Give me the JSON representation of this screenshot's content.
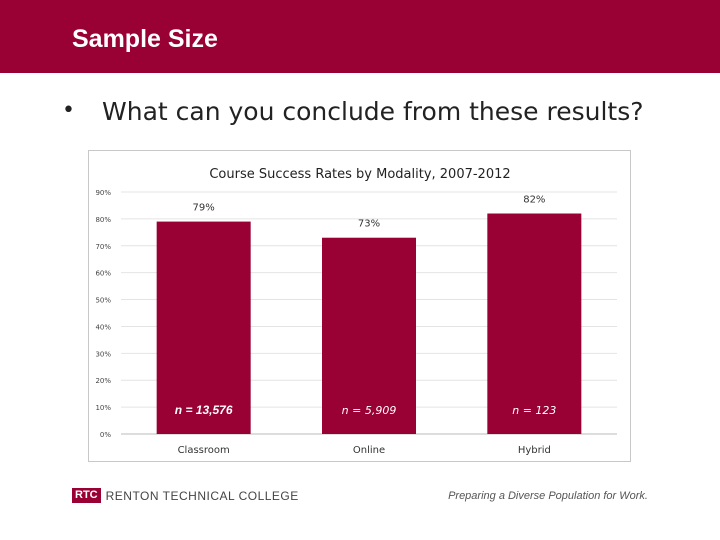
{
  "slide": {
    "title": "Sample Size",
    "bullet_symbol": "•",
    "question": "What can you conclude from these results?"
  },
  "chart_data": {
    "type": "bar",
    "title": "Course Success Rates by Modality, 2007-2012",
    "categories": [
      "Classroom",
      "Online",
      "Hybrid"
    ],
    "values": [
      79,
      73,
      82
    ],
    "value_labels": [
      "79%",
      "73%",
      "82%"
    ],
    "sample_labels": [
      "n = 13,576",
      "n = 5,909",
      "n = 123"
    ],
    "ylim": [
      0,
      90
    ],
    "yticks": [
      0,
      10,
      20,
      30,
      40,
      50,
      60,
      70,
      80,
      90
    ],
    "ytick_labels": [
      "0%",
      "10%",
      "20%",
      "30%",
      "40%",
      "50%",
      "60%",
      "70%",
      "80%",
      "90%"
    ],
    "xlabel": "",
    "ylabel": "",
    "bar_color": "#990033",
    "grid": true
  },
  "footer": {
    "logo_abbrev": "RTC",
    "college_name": "RENTON TECHNICAL COLLEGE",
    "tagline": "Preparing a Diverse Population for Work."
  },
  "colors": {
    "brand": "#990033",
    "text": "#222222"
  }
}
